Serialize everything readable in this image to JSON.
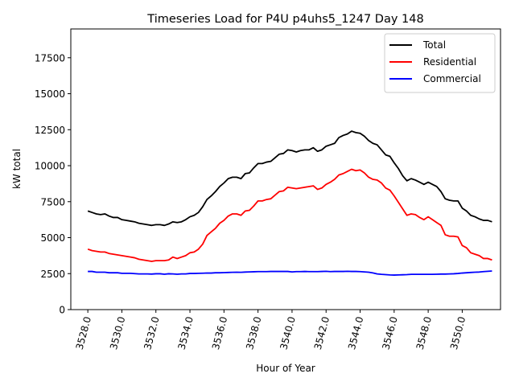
{
  "chart_data": {
    "type": "line",
    "title": "Timeseries Load for P4U p4uhs5_1247  Day 148",
    "xlabel": "Hour of Year",
    "ylabel": "kW total",
    "xlim": [
      3527.0,
      3552.25
    ],
    "ylim": [
      0,
      19500
    ],
    "x_ticks": [
      "3528.0",
      "3530.0",
      "3532.0",
      "3534.0",
      "3536.0",
      "3538.0",
      "3540.0",
      "3542.0",
      "3544.0",
      "3546.0",
      "3548.0",
      "3550.0"
    ],
    "y_ticks": [
      "0",
      "2500",
      "5000",
      "7500",
      "10000",
      "12500",
      "15000",
      "17500"
    ],
    "legend_position": "upper right",
    "grid": false,
    "x": [
      3528.0,
      3528.25,
      3528.5,
      3528.75,
      3529.0,
      3529.25,
      3529.5,
      3529.75,
      3530.0,
      3530.25,
      3530.5,
      3530.75,
      3531.0,
      3531.25,
      3531.5,
      3531.75,
      3532.0,
      3532.25,
      3532.5,
      3532.75,
      3533.0,
      3533.25,
      3533.5,
      3533.75,
      3534.0,
      3534.25,
      3534.5,
      3534.75,
      3535.0,
      3535.25,
      3535.5,
      3535.75,
      3536.0,
      3536.25,
      3536.5,
      3536.75,
      3537.0,
      3537.25,
      3537.5,
      3537.75,
      3538.0,
      3538.25,
      3538.5,
      3538.75,
      3539.0,
      3539.25,
      3539.5,
      3539.75,
      3540.0,
      3540.25,
      3540.5,
      3540.75,
      3541.0,
      3541.25,
      3541.5,
      3541.75,
      3542.0,
      3542.25,
      3542.5,
      3542.75,
      3543.0,
      3543.25,
      3543.5,
      3543.75,
      3544.0,
      3544.25,
      3544.5,
      3544.75,
      3545.0,
      3545.25,
      3545.5,
      3545.75,
      3546.0,
      3546.25,
      3546.5,
      3546.75,
      3547.0,
      3547.25,
      3547.5,
      3547.75,
      3548.0,
      3548.25,
      3548.5,
      3548.75,
      3549.0,
      3549.25,
      3549.5,
      3549.75,
      3550.0,
      3550.25,
      3550.5,
      3550.75,
      3551.0,
      3551.25,
      3551.5,
      3551.75
    ],
    "series": [
      {
        "name": "Total",
        "color": "#000000",
        "values": [
          6850,
          6750,
          6650,
          6600,
          6650,
          6500,
          6400,
          6400,
          6250,
          6200,
          6150,
          6100,
          6000,
          5950,
          5900,
          5850,
          5900,
          5900,
          5850,
          5950,
          6100,
          6050,
          6100,
          6250,
          6450,
          6550,
          6750,
          7150,
          7650,
          7900,
          8200,
          8550,
          8800,
          9100,
          9200,
          9200,
          9100,
          9450,
          9500,
          9850,
          10150,
          10150,
          10250,
          10300,
          10550,
          10800,
          10850,
          11100,
          11050,
          10950,
          11050,
          11100,
          11100,
          11250,
          11000,
          11100,
          11350,
          11450,
          11550,
          11950,
          12100,
          12200,
          12400,
          12300,
          12250,
          12050,
          11750,
          11550,
          11450,
          11100,
          10750,
          10650,
          10200,
          9800,
          9300,
          8950,
          9100,
          9000,
          8850,
          8700,
          8850,
          8700,
          8550,
          8200,
          7700,
          7600,
          7550,
          7550,
          7050,
          6850,
          6550,
          6450,
          6300,
          6200,
          6200,
          6100
        ]
      },
      {
        "name": "Residential",
        "color": "#ff0000",
        "values": [
          4200,
          4100,
          4050,
          4000,
          4000,
          3900,
          3850,
          3800,
          3750,
          3700,
          3650,
          3600,
          3500,
          3450,
          3400,
          3350,
          3400,
          3400,
          3400,
          3450,
          3650,
          3550,
          3650,
          3750,
          3950,
          4000,
          4200,
          4550,
          5150,
          5400,
          5650,
          6000,
          6200,
          6500,
          6650,
          6650,
          6550,
          6850,
          6900,
          7200,
          7550,
          7550,
          7650,
          7700,
          7950,
          8200,
          8250,
          8500,
          8450,
          8400,
          8450,
          8500,
          8550,
          8600,
          8350,
          8450,
          8700,
          8850,
          9050,
          9350,
          9450,
          9600,
          9750,
          9650,
          9700,
          9500,
          9200,
          9050,
          9000,
          8800,
          8450,
          8300,
          7900,
          7450,
          7000,
          6550,
          6650,
          6600,
          6400,
          6250,
          6450,
          6250,
          6050,
          5850,
          5200,
          5100,
          5100,
          5050,
          4450,
          4300,
          3950,
          3850,
          3750,
          3550,
          3550,
          3450
        ]
      },
      {
        "name": "Commercial",
        "color": "#0000ff",
        "values": [
          2650,
          2650,
          2600,
          2600,
          2600,
          2560,
          2560,
          2560,
          2520,
          2520,
          2520,
          2500,
          2480,
          2480,
          2480,
          2470,
          2490,
          2490,
          2460,
          2490,
          2480,
          2460,
          2480,
          2480,
          2510,
          2510,
          2520,
          2530,
          2540,
          2540,
          2560,
          2560,
          2570,
          2580,
          2590,
          2600,
          2590,
          2610,
          2620,
          2630,
          2640,
          2640,
          2640,
          2650,
          2650,
          2650,
          2650,
          2650,
          2620,
          2640,
          2640,
          2650,
          2640,
          2640,
          2640,
          2650,
          2660,
          2640,
          2650,
          2650,
          2650,
          2660,
          2650,
          2650,
          2640,
          2620,
          2600,
          2550,
          2480,
          2450,
          2430,
          2410,
          2400,
          2410,
          2420,
          2430,
          2450,
          2450,
          2450,
          2450,
          2450,
          2450,
          2460,
          2470,
          2470,
          2480,
          2490,
          2510,
          2540,
          2560,
          2580,
          2600,
          2610,
          2640,
          2660,
          2680
        ]
      }
    ]
  }
}
